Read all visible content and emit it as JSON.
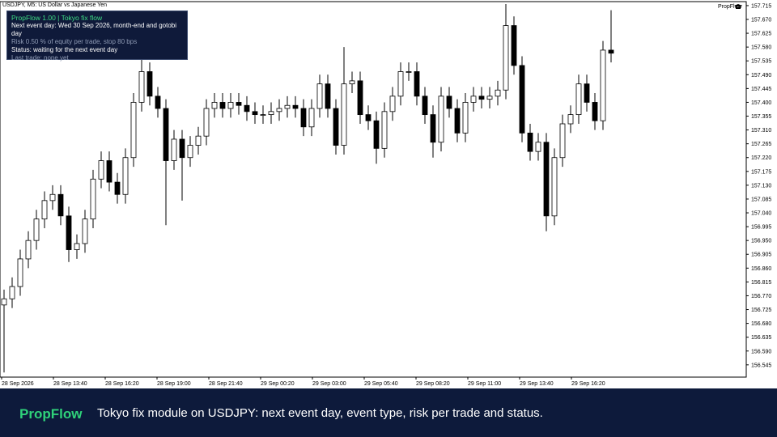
{
  "window": {
    "symbol_label": "USDJPY, M5:  US Dollar vs Japanese Yen",
    "badge": "PropFlow"
  },
  "panel": {
    "title": "PropFlow 1.00  |  Tokyo fix flow",
    "lines": [
      "Next event day: Wed 30 Sep 2026, month-end and gotobi day",
      "Risk 0.50 % of equity per trade, stop 80 bps",
      "Status: waiting for the next event day",
      "Last trade: none yet"
    ]
  },
  "chart_data": {
    "type": "candlestick",
    "open": [
      156.74,
      156.76,
      156.8,
      156.89,
      156.95,
      157.02,
      157.08,
      157.1,
      157.03,
      156.92,
      156.94,
      157.02,
      157.15,
      157.21,
      157.14,
      157.1,
      157.22,
      157.4,
      157.5,
      157.42,
      157.38,
      157.21,
      157.28,
      157.22,
      157.26,
      157.29,
      157.38,
      157.4,
      157.38,
      157.4,
      157.39,
      157.37,
      157.36,
      157.36,
      157.37,
      157.38,
      157.39,
      157.38,
      157.32,
      157.38,
      157.46,
      157.38,
      157.26,
      157.46,
      157.47,
      157.36,
      157.34,
      157.25,
      157.37,
      157.42,
      157.5,
      157.5,
      157.42,
      157.36,
      157.27,
      157.42,
      157.38,
      157.3,
      157.4,
      157.42,
      157.41,
      157.42,
      157.44,
      157.65,
      157.52,
      157.3,
      157.24,
      157.27,
      157.03,
      157.22,
      157.33,
      157.36,
      157.46,
      157.4,
      157.34,
      157.57
    ],
    "high": [
      156.79,
      156.83,
      156.92,
      156.98,
      157.05,
      157.11,
      157.13,
      157.13,
      157.06,
      156.97,
      157.05,
      157.18,
      157.24,
      157.24,
      157.17,
      157.25,
      157.43,
      157.56,
      157.53,
      157.45,
      157.41,
      157.31,
      157.31,
      157.29,
      157.32,
      157.41,
      157.43,
      157.43,
      157.43,
      157.43,
      157.42,
      157.4,
      157.39,
      157.4,
      157.41,
      157.42,
      157.42,
      157.41,
      157.41,
      157.49,
      157.49,
      157.41,
      157.58,
      157.5,
      157.5,
      157.39,
      157.37,
      157.4,
      157.45,
      157.53,
      157.53,
      157.53,
      157.45,
      157.39,
      157.45,
      157.45,
      157.41,
      157.43,
      157.45,
      157.45,
      157.45,
      157.47,
      157.72,
      157.68,
      157.55,
      157.33,
      157.3,
      157.3,
      157.25,
      157.36,
      157.39,
      157.49,
      157.49,
      157.43,
      157.6,
      157.7
    ],
    "low": [
      156.52,
      156.73,
      156.77,
      156.86,
      156.92,
      156.99,
      157.05,
      157.0,
      156.88,
      156.89,
      156.91,
      156.99,
      157.12,
      157.11,
      157.07,
      157.07,
      157.19,
      157.37,
      157.39,
      157.35,
      157.0,
      157.18,
      157.08,
      157.19,
      157.23,
      157.26,
      157.35,
      157.35,
      157.35,
      157.36,
      157.34,
      157.33,
      157.33,
      157.33,
      157.34,
      157.35,
      157.35,
      157.29,
      157.29,
      157.35,
      157.35,
      157.23,
      157.23,
      157.43,
      157.33,
      157.31,
      157.2,
      157.22,
      157.34,
      157.39,
      157.47,
      157.39,
      157.33,
      157.22,
      157.24,
      157.35,
      157.27,
      157.27,
      157.37,
      157.38,
      157.38,
      157.39,
      157.41,
      157.49,
      157.27,
      157.21,
      157.21,
      156.98,
      157.0,
      157.19,
      157.3,
      157.33,
      157.37,
      157.31,
      157.31,
      157.53
    ],
    "close": [
      156.76,
      156.8,
      156.89,
      156.95,
      157.02,
      157.08,
      157.1,
      157.03,
      156.92,
      156.94,
      157.02,
      157.15,
      157.21,
      157.14,
      157.1,
      157.22,
      157.4,
      157.5,
      157.42,
      157.38,
      157.21,
      157.28,
      157.22,
      157.26,
      157.29,
      157.38,
      157.4,
      157.38,
      157.4,
      157.39,
      157.37,
      157.36,
      157.36,
      157.37,
      157.38,
      157.39,
      157.38,
      157.32,
      157.38,
      157.46,
      157.38,
      157.26,
      157.46,
      157.47,
      157.36,
      157.34,
      157.25,
      157.37,
      157.42,
      157.5,
      157.5,
      157.42,
      157.36,
      157.27,
      157.42,
      157.38,
      157.3,
      157.4,
      157.42,
      157.41,
      157.42,
      157.44,
      157.65,
      157.52,
      157.3,
      157.24,
      157.27,
      157.03,
      157.22,
      157.33,
      157.36,
      157.46,
      157.4,
      157.34,
      157.57,
      157.56
    ],
    "ylim": [
      156.505,
      157.728
    ],
    "yticks": [
      157.715,
      {
        "value": 157.67,
        "label": "157.670"
      },
      157.625,
      {
        "value": 157.58,
        "label": "157.580"
      },
      157.535,
      {
        "value": 157.49,
        "label": "157.490"
      },
      157.445,
      {
        "value": 157.4,
        "label": "157.400"
      },
      157.355,
      {
        "value": 157.31,
        "label": "157.310"
      },
      157.265,
      {
        "value": 157.22,
        "label": "157.220"
      },
      157.175,
      {
        "value": 157.13,
        "label": "157.130"
      },
      157.085,
      {
        "value": 157.04,
        "label": "157.040"
      },
      156.995,
      {
        "value": 156.95,
        "label": "156.950"
      },
      156.905,
      {
        "value": 156.86,
        "label": "156.860"
      },
      156.815,
      {
        "value": 156.77,
        "label": "156.770"
      },
      156.725,
      {
        "value": 156.68,
        "label": "156.680"
      },
      156.635,
      {
        "value": 156.59,
        "label": "156.590"
      },
      156.545
    ],
    "x_labels": [
      "28 Sep 2026",
      "28 Sep 13:40",
      "28 Sep 16:20",
      "28 Sep 19:00",
      "28 Sep 21:40",
      "29 Sep 00:20",
      "29 Sep 03:00",
      "29 Sep 05:40",
      "29 Sep 08:20",
      "29 Sep 11:00",
      "29 Sep 13:40",
      "29 Sep 16:20"
    ]
  },
  "footer": {
    "brand": "PropFlow",
    "caption": "Tokyo fix module on USDJPY: next event day, event type, risk per trade and status."
  }
}
